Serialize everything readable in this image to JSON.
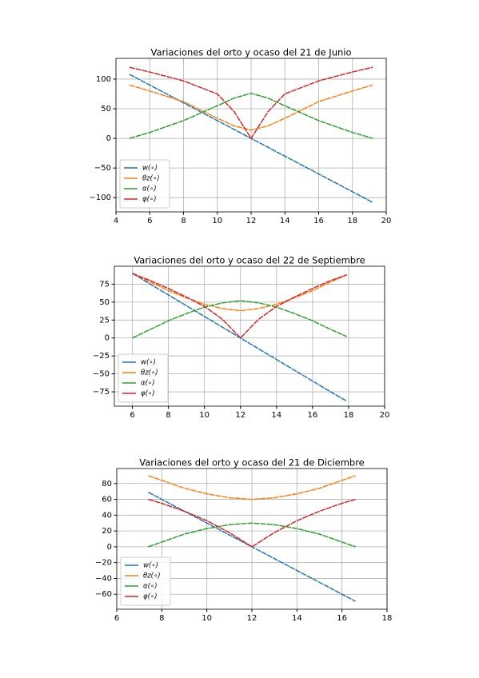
{
  "chart_data": [
    {
      "type": "line",
      "title": "Variaciones del orto y ocaso del 21 de Junio",
      "x": [
        4.8,
        6,
        8,
        10,
        11,
        12,
        13,
        14,
        16,
        18,
        19.2
      ],
      "series": [
        {
          "name": "w(∘)",
          "color": "#1f77b4",
          "values": [
            108,
            90,
            60,
            30,
            15,
            0,
            -15,
            -30,
            -60,
            -90,
            -108
          ]
        },
        {
          "name": "θz(∘)",
          "color": "#ff7f0e",
          "values": [
            90,
            80,
            62,
            34,
            21,
            14,
            21,
            34,
            62,
            80,
            90
          ]
        },
        {
          "name": "α(∘)",
          "color": "#2ca02c",
          "values": [
            0,
            10,
            30,
            55,
            68,
            76,
            68,
            55,
            30,
            10,
            0
          ]
        },
        {
          "name": "φ(∘)",
          "color": "#d62728",
          "values": [
            120,
            112,
            97,
            75,
            45,
            0,
            45,
            75,
            97,
            112,
            120
          ]
        }
      ],
      "xlim": [
        4,
        20
      ],
      "xticks": [
        4,
        6,
        8,
        10,
        12,
        14,
        16,
        18,
        20
      ],
      "ylim": [
        -124,
        135
      ],
      "yticks": [
        100,
        50,
        0,
        {
          "value": -50,
          "label": "−50"
        },
        {
          "value": -100,
          "label": "−100"
        }
      ],
      "grid": true,
      "legend": "lower left"
    },
    {
      "type": "line",
      "title": "Variaciones del orto y ocaso del 22 de Septiembre",
      "x": [
        6,
        7,
        8,
        9,
        10,
        11,
        12,
        13,
        14,
        15,
        16,
        17,
        17.9
      ],
      "series": [
        {
          "name": "w(∘)",
          "color": "#1f77b4",
          "values": [
            90,
            75,
            60,
            45,
            30,
            15,
            0,
            -15,
            -30,
            -45,
            -60,
            -75,
            -88
          ]
        },
        {
          "name": "θz(∘)",
          "color": "#ff7f0e",
          "values": [
            90,
            78,
            66,
            56,
            47,
            41,
            38,
            41,
            47,
            56,
            66,
            78,
            88
          ]
        },
        {
          "name": "α(∘)",
          "color": "#2ca02c",
          "values": [
            0,
            12,
            24,
            34,
            43,
            49,
            52,
            49,
            43,
            34,
            24,
            12,
            2
          ]
        },
        {
          "name": "φ(∘)",
          "color": "#d62728",
          "values": [
            90,
            80,
            69,
            57,
            44,
            26,
            0,
            26,
            44,
            57,
            69,
            80,
            88
          ]
        }
      ],
      "xlim": [
        5,
        20
      ],
      "xticks": [
        6,
        8,
        10,
        12,
        14,
        16,
        18,
        20
      ],
      "ylim": [
        -95,
        100
      ],
      "yticks": [
        75,
        50,
        25,
        0,
        {
          "value": -25,
          "label": "−25"
        },
        {
          "value": -50,
          "label": "−50"
        },
        {
          "value": -75,
          "label": "−75"
        }
      ],
      "grid": true,
      "legend": "lower left"
    },
    {
      "type": "line",
      "title": "Variaciones del orto y ocaso del 21 de Diciembre",
      "x": [
        7.4,
        8,
        9,
        10,
        11,
        12,
        13,
        14,
        15,
        16,
        16.6
      ],
      "series": [
        {
          "name": "w(∘)",
          "color": "#1f77b4",
          "values": [
            69,
            60,
            45,
            30,
            15,
            0,
            -15,
            -30,
            -45,
            -60,
            -69
          ]
        },
        {
          "name": "θz(∘)",
          "color": "#ff7f0e",
          "values": [
            90,
            84,
            74,
            67,
            62,
            60,
            62,
            67,
            74,
            84,
            90
          ]
        },
        {
          "name": "α(∘)",
          "color": "#2ca02c",
          "values": [
            0,
            6,
            16,
            23,
            28,
            30,
            28,
            23,
            16,
            6,
            0
          ]
        },
        {
          "name": "φ(∘)",
          "color": "#d62728",
          "values": [
            60,
            55,
            45,
            33,
            18,
            0,
            18,
            33,
            45,
            55,
            60
          ]
        }
      ],
      "xlim": [
        6,
        18
      ],
      "xticks": [
        6,
        8,
        10,
        12,
        14,
        16,
        18
      ],
      "ylim": [
        -79,
        99
      ],
      "yticks": [
        80,
        60,
        40,
        20,
        0,
        {
          "value": -20,
          "label": "−20"
        },
        {
          "value": -40,
          "label": "−40"
        },
        {
          "value": -60,
          "label": "−60"
        }
      ],
      "grid": true,
      "legend": "lower left"
    }
  ]
}
